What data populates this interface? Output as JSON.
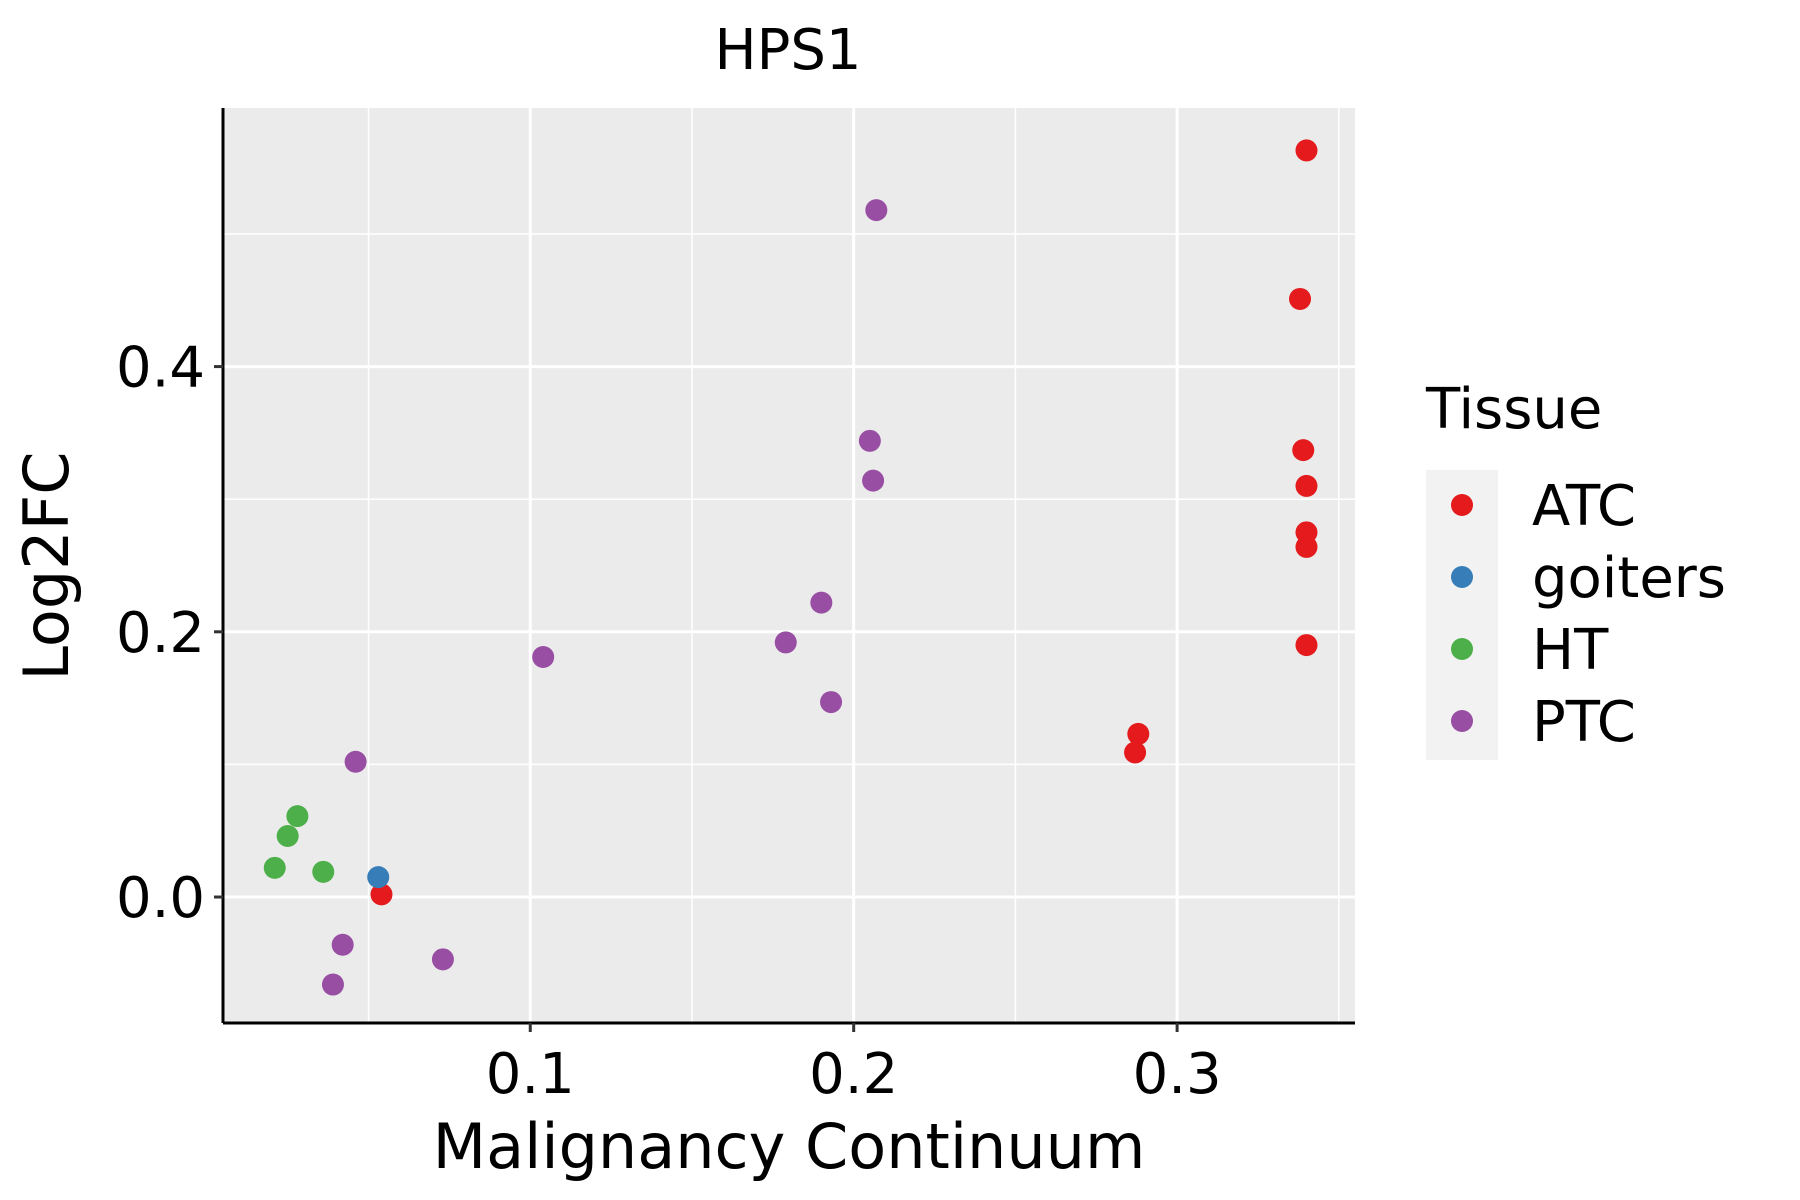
{
  "chart_data": {
    "type": "scatter",
    "title": "HPS1",
    "xlabel": "Malignancy Continuum",
    "ylabel": "Log2FC",
    "xlim": [
      0.005,
      0.355
    ],
    "ylim": [
      -0.095,
      0.595
    ],
    "x_ticks": [
      0.1,
      0.2,
      0.3
    ],
    "x_tick_labels": [
      "0.1",
      "0.2",
      "0.3"
    ],
    "y_ticks": [
      0.0,
      0.2,
      0.4
    ],
    "y_tick_labels": [
      "0.0",
      "0.2",
      "0.4"
    ],
    "grid": true,
    "legend": {
      "title": "Tissue",
      "position": "right"
    },
    "series": [
      {
        "name": "ATC",
        "color": "#E41A1C",
        "points": [
          {
            "x": 0.34,
            "y": 0.563
          },
          {
            "x": 0.338,
            "y": 0.451
          },
          {
            "x": 0.339,
            "y": 0.337
          },
          {
            "x": 0.34,
            "y": 0.31
          },
          {
            "x": 0.34,
            "y": 0.275
          },
          {
            "x": 0.34,
            "y": 0.264
          },
          {
            "x": 0.34,
            "y": 0.19
          },
          {
            "x": 0.288,
            "y": 0.123
          },
          {
            "x": 0.287,
            "y": 0.109
          },
          {
            "x": 0.054,
            "y": 0.002
          }
        ]
      },
      {
        "name": "goiters",
        "color": "#377EB8",
        "points": [
          {
            "x": 0.053,
            "y": 0.015
          }
        ]
      },
      {
        "name": "HT",
        "color": "#4DAF4A",
        "points": [
          {
            "x": 0.028,
            "y": 0.061
          },
          {
            "x": 0.025,
            "y": 0.046
          },
          {
            "x": 0.021,
            "y": 0.022
          },
          {
            "x": 0.036,
            "y": 0.019
          }
        ]
      },
      {
        "name": "PTC",
        "color": "#984EA3",
        "points": [
          {
            "x": 0.207,
            "y": 0.518
          },
          {
            "x": 0.205,
            "y": 0.344
          },
          {
            "x": 0.206,
            "y": 0.314
          },
          {
            "x": 0.19,
            "y": 0.222
          },
          {
            "x": 0.179,
            "y": 0.192
          },
          {
            "x": 0.193,
            "y": 0.147
          },
          {
            "x": 0.104,
            "y": 0.181
          },
          {
            "x": 0.046,
            "y": 0.102
          },
          {
            "x": 0.042,
            "y": -0.036
          },
          {
            "x": 0.039,
            "y": -0.066
          },
          {
            "x": 0.073,
            "y": -0.047
          }
        ]
      }
    ]
  }
}
